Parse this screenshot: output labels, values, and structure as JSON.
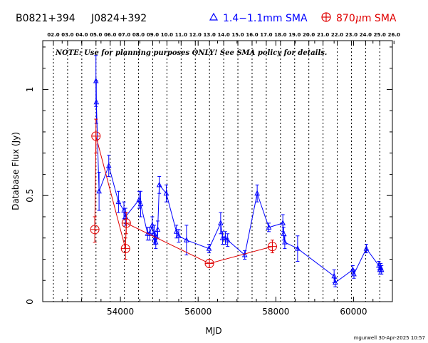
{
  "header": {
    "source_name": "B0821+394",
    "alt_name": "J0824+392",
    "legend_blue": "1.4−1.1mm SMA",
    "legend_red_pre": "870",
    "legend_red_mu": "μ",
    "legend_red_post": "m SMA"
  },
  "note": "NOTE: Use for planning purposes ONLY!  See SMA policy for details.",
  "stamp": "mgurwell 30-Apr-2025 10:57",
  "colors": {
    "blue": "#0000ff",
    "red": "#e00000",
    "black": "#000000"
  },
  "chart_data": {
    "type": "scatter",
    "xlabel": "MJD",
    "ylabel": "Database Flux (Jy)",
    "xlim": [
      52000,
      61000
    ],
    "ylim": [
      0,
      1.23
    ],
    "xticks": [
      54000,
      56000,
      58000,
      60000
    ],
    "yticks": [
      0,
      0.5,
      1
    ],
    "ytick_labels": [
      "0",
      "0.5",
      "1"
    ],
    "top_axis": {
      "label_ticks": [
        "02.0",
        "03.0",
        "04.0",
        "05.0",
        "06.0",
        "07.0",
        "08.0",
        "09.0",
        "10.0",
        "11.0",
        "12.0",
        "13.0",
        "14.0",
        "15.0",
        "16.0",
        "17.0",
        "18.0",
        "19.0",
        "20.0",
        "21.0",
        "22.0",
        "23.0",
        "24.0",
        "25.0",
        "26.0"
      ],
      "start_mjd": 52275,
      "step_days": 365.25
    },
    "series": [
      {
        "name": "1.4−1.1mm SMA",
        "color": "#0000ff",
        "marker": "triangle",
        "x": [
          53370,
          53380,
          53450,
          53700,
          53950,
          54090,
          54130,
          54480,
          54520,
          54700,
          54750,
          54820,
          54870,
          54890,
          54910,
          54960,
          55000,
          55180,
          55440,
          55500,
          55700,
          56280,
          56580,
          56630,
          56700,
          56760,
          57200,
          57520,
          57820,
          58180,
          58200,
          58230,
          58560,
          59500,
          59530,
          59980,
          60010,
          60330,
          60650,
          60680,
          60700,
          60720
        ],
        "y": [
          1.04,
          0.94,
          0.52,
          0.64,
          0.47,
          0.43,
          0.4,
          0.48,
          0.46,
          0.32,
          0.32,
          0.36,
          0.32,
          0.3,
          0.28,
          0.34,
          0.55,
          0.51,
          0.33,
          0.31,
          0.29,
          0.25,
          0.37,
          0.3,
          0.3,
          0.29,
          0.22,
          0.51,
          0.35,
          0.37,
          0.32,
          0.28,
          0.25,
          0.12,
          0.09,
          0.15,
          0.13,
          0.25,
          0.17,
          0.15,
          0.16,
          0.15
        ],
        "err": [
          0.12,
          0.1,
          0.09,
          0.05,
          0.05,
          0.04,
          0.04,
          0.04,
          0.06,
          0.03,
          0.03,
          0.04,
          0.04,
          0.03,
          0.03,
          0.04,
          0.04,
          0.04,
          0.03,
          0.03,
          0.07,
          0.02,
          0.05,
          0.03,
          0.03,
          0.03,
          0.02,
          0.04,
          0.02,
          0.04,
          0.03,
          0.03,
          0.06,
          0.03,
          0.02,
          0.02,
          0.02,
          0.02,
          0.02,
          0.02,
          0.02,
          0.02
        ]
      },
      {
        "name": "870μm SMA",
        "color": "#e00000",
        "marker": "circle-plus",
        "x": [
          53340,
          53370,
          54130,
          54150,
          56290,
          57910
        ],
        "y": [
          0.34,
          0.78,
          0.25,
          0.37,
          0.18,
          0.26
        ],
        "err": [
          0.06,
          0.08,
          0.05,
          0.05,
          0.02,
          0.03
        ]
      }
    ]
  }
}
